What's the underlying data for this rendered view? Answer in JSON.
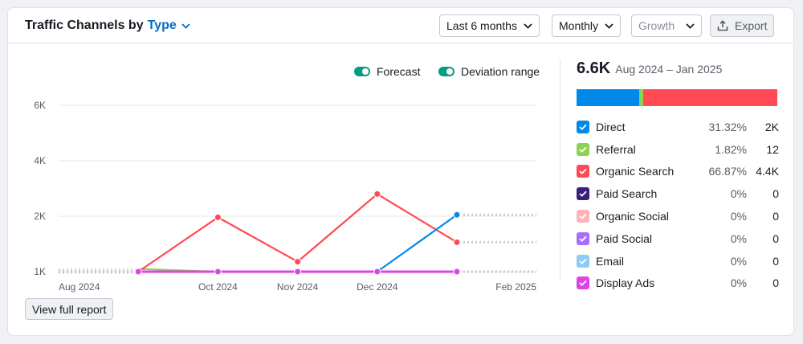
{
  "header": {
    "title_prefix": "Traffic Channels by",
    "title_selector": "Type",
    "period_select": "Last 6 months",
    "granularity_select": "Monthly",
    "metric_select": "Growth",
    "export_label": "Export"
  },
  "toggles": {
    "forecast_label": "Forecast",
    "deviation_label": "Deviation range"
  },
  "summary": {
    "total": "6.6K",
    "range": "Aug 2024 – Jan 2025"
  },
  "legend": [
    {
      "name": "Direct",
      "pct": "31.32%",
      "value": "2K",
      "color": "#0089eb",
      "share": 31.32
    },
    {
      "name": "Referral",
      "pct": "1.82%",
      "value": "12",
      "color": "#8bd152",
      "share": 1.82
    },
    {
      "name": "Organic Search",
      "pct": "66.87%",
      "value": "4.4K",
      "color": "#ff4953",
      "share": 66.87
    },
    {
      "name": "Paid Search",
      "pct": "0%",
      "value": "0",
      "color": "#3c1f7b",
      "share": 0
    },
    {
      "name": "Organic Social",
      "pct": "0%",
      "value": "0",
      "color": "#ffb3b8",
      "share": 0
    },
    {
      "name": "Paid Social",
      "pct": "0%",
      "value": "0",
      "color": "#a56eff",
      "share": 0
    },
    {
      "name": "Email",
      "pct": "0%",
      "value": "0",
      "color": "#8ecbf7",
      "share": 0
    },
    {
      "name": "Display Ads",
      "pct": "0%",
      "value": "0",
      "color": "#dd43e5",
      "share": 0
    }
  ],
  "footer": {
    "view_report": "View full report"
  },
  "chart_data": {
    "type": "line",
    "title": "",
    "xlabel": "",
    "ylabel": "",
    "ylim": [
      1000,
      6000
    ],
    "yticks": [
      1000,
      2000,
      4000,
      6000
    ],
    "ytick_labels": [
      "1K",
      "2K",
      "4K",
      "6K"
    ],
    "x": [
      "2024-08",
      "2024-09",
      "2024-10",
      "2024-11",
      "2024-12",
      "2025-01"
    ],
    "xtick_labels": [
      {
        "x": "2024-08",
        "label": "Aug 2024"
      },
      {
        "x": "2024-10",
        "label": "Oct 2024"
      },
      {
        "x": "2024-11",
        "label": "Nov 2024"
      },
      {
        "x": "2024-12",
        "label": "Dec 2024"
      },
      {
        "x": "2025-02",
        "label": "Feb 2025"
      }
    ],
    "grid": true,
    "series": [
      {
        "name": "Organic Search",
        "color": "#ff4953",
        "values": [
          null,
          1000,
          1980,
          1180,
          2800,
          1530
        ]
      },
      {
        "name": "Direct",
        "color": "#0089eb",
        "values": [
          null,
          null,
          null,
          null,
          1000,
          2050
        ]
      },
      {
        "name": "Referral",
        "color": "#8bd152",
        "values": [
          null,
          1050,
          1000,
          1000,
          1000,
          1000
        ]
      },
      {
        "name": "Display Ads",
        "color": "#dd43e5",
        "values": [
          null,
          1000,
          1000,
          1000,
          1000,
          1000
        ]
      }
    ],
    "forecast": [
      {
        "name": "Direct",
        "from": "2025-01",
        "to": "2025-02",
        "value": 2050
      },
      {
        "name": "Organic Search",
        "from": "2025-01",
        "to": "2025-02",
        "value": 1530
      },
      {
        "name": "Display Ads",
        "from": "2025-01",
        "to": "2025-02",
        "value": 1000
      }
    ]
  }
}
